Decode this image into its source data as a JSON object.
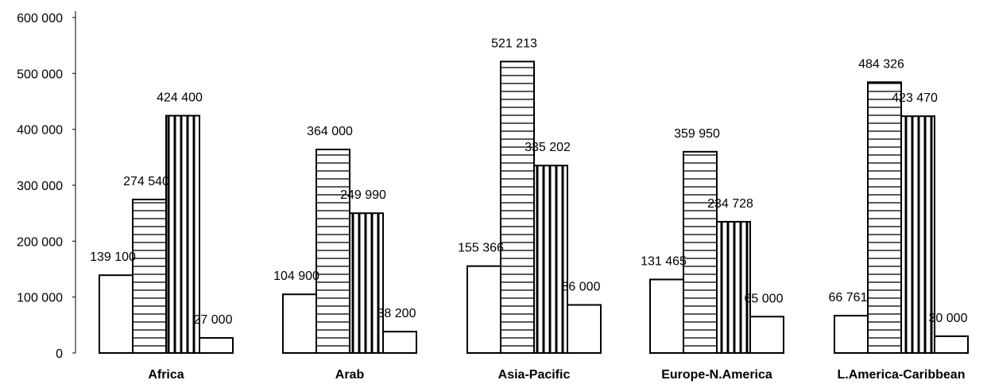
{
  "chart_data": {
    "type": "bar",
    "title": "",
    "xlabel": "",
    "ylabel": "",
    "ylim": [
      0,
      600000
    ],
    "y_ticks": [
      {
        "value": 0,
        "label": "0"
      },
      {
        "value": 100000,
        "label": "100 000"
      },
      {
        "value": 200000,
        "label": "200 000"
      },
      {
        "value": 300000,
        "label": "300 000"
      },
      {
        "value": 400000,
        "label": "400 000"
      },
      {
        "value": 500000,
        "label": "500 000"
      },
      {
        "value": 600000,
        "label": "600 000"
      }
    ],
    "grid": false,
    "legend": "none",
    "categories": [
      "Africa",
      "Arab",
      "Asia-Pacific",
      "Europe-N.America",
      "L.America-Caribbean"
    ],
    "series": [
      {
        "fill": "blank",
        "values": [
          139100,
          104900,
          155366,
          131465,
          66761
        ],
        "labels": [
          "139 100",
          "104 900",
          "155 366",
          "131 465",
          "66 761"
        ]
      },
      {
        "fill": "horizontal-stripes",
        "values": [
          274540,
          364000,
          521213,
          359950,
          484326
        ],
        "labels": [
          "274 540",
          "364 000",
          "521 213",
          "359 950",
          "484 326"
        ]
      },
      {
        "fill": "vertical-stripes",
        "values": [
          424400,
          249990,
          335202,
          234728,
          423470
        ],
        "labels": [
          "424 400",
          "249 990",
          "335 202",
          "234 728",
          "423 470"
        ]
      },
      {
        "fill": "blank",
        "values": [
          27000,
          38200,
          86000,
          65000,
          30000
        ],
        "labels": [
          "27 000",
          "38 200",
          "86 000",
          "65 000",
          "30 000"
        ]
      }
    ],
    "colors": {
      "outline": "#000000",
      "background": "#ffffff"
    }
  }
}
